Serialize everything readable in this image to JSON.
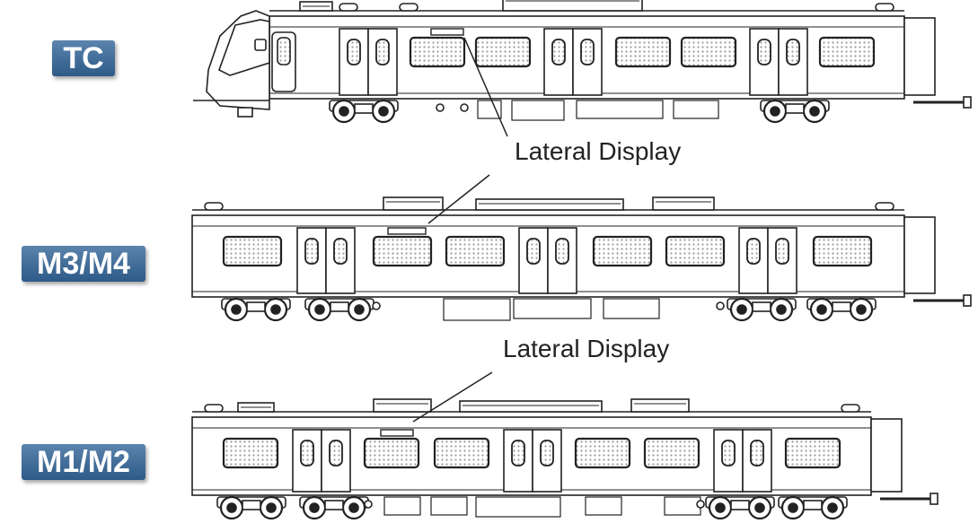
{
  "cars": [
    {
      "id": "tc",
      "label": "TC"
    },
    {
      "id": "m3m4",
      "label": "M3/M4"
    },
    {
      "id": "m1m2",
      "label": "M1/M2"
    }
  ],
  "callouts": [
    "Lateral Display",
    "Lateral Display"
  ],
  "colors": {
    "badge_top": "#5b84ad",
    "badge_bottom": "#2d5a88",
    "line": "#222222"
  }
}
